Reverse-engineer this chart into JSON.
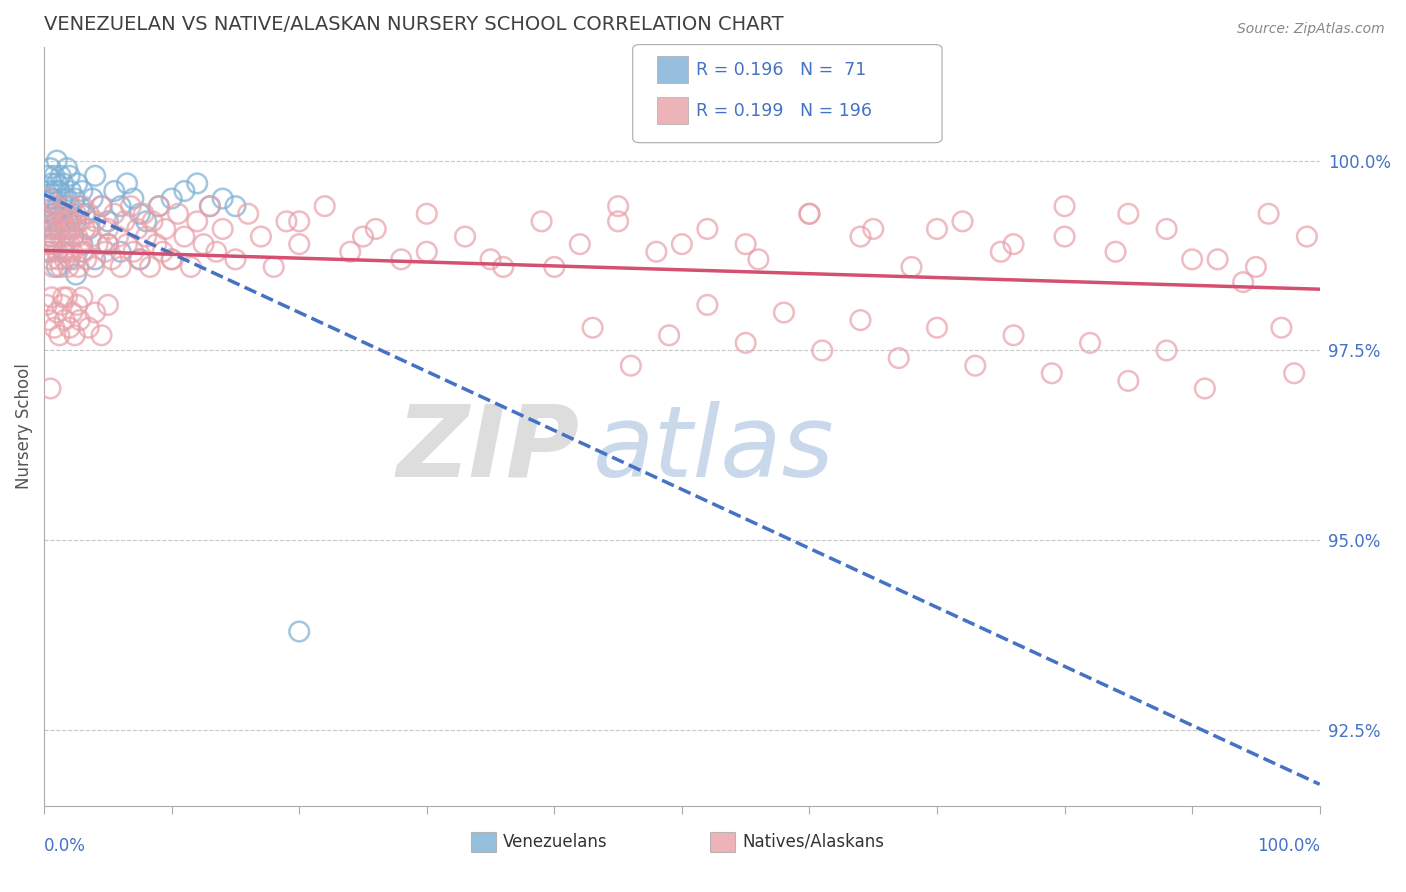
{
  "title": "VENEZUELAN VS NATIVE/ALASKAN NURSERY SCHOOL CORRELATION CHART",
  "source": "Source: ZipAtlas.com",
  "xmin": 0.0,
  "xmax": 100.0,
  "ymin": 91.5,
  "ymax": 101.5,
  "ytick_labels": [
    "92.5%",
    "95.0%",
    "97.5%",
    "100.0%"
  ],
  "ytick_values": [
    92.5,
    95.0,
    97.5,
    100.0
  ],
  "ylabel": "Nursery School",
  "blue_color": "#7bafd4",
  "pink_color": "#e8a0a8",
  "blue_line_color": "#4472c4",
  "pink_line_color": "#d45070",
  "axis_label_color": "#4472c4",
  "title_color": "#404040",
  "grid_color": "#c8c8c8",
  "background_color": "#ffffff",
  "blue_scatter_x": [
    0.2,
    0.3,
    0.3,
    0.4,
    0.5,
    0.5,
    0.5,
    0.6,
    0.6,
    0.7,
    0.7,
    0.8,
    0.8,
    0.9,
    1.0,
    1.0,
    1.0,
    1.1,
    1.2,
    1.2,
    1.3,
    1.3,
    1.4,
    1.5,
    1.5,
    1.6,
    1.7,
    1.8,
    1.8,
    1.9,
    2.0,
    2.0,
    2.1,
    2.2,
    2.3,
    2.4,
    2.5,
    2.6,
    2.8,
    3.0,
    3.2,
    3.5,
    3.8,
    4.0,
    4.5,
    5.0,
    5.5,
    6.0,
    6.5,
    7.0,
    7.5,
    8.0,
    9.0,
    10.0,
    11.0,
    12.0,
    13.0,
    14.0,
    15.0,
    20.0,
    0.4,
    0.6,
    1.0,
    1.5,
    2.0,
    2.5,
    3.0,
    4.0,
    5.0,
    6.0,
    7.5
  ],
  "blue_scatter_y": [
    99.2,
    99.4,
    99.8,
    99.6,
    99.0,
    99.5,
    99.9,
    99.3,
    99.7,
    99.1,
    99.5,
    99.3,
    99.8,
    99.6,
    99.2,
    99.7,
    100.0,
    99.4,
    99.1,
    99.6,
    99.3,
    99.8,
    99.5,
    99.2,
    99.7,
    99.4,
    99.1,
    99.5,
    99.9,
    99.2,
    99.4,
    99.8,
    99.6,
    99.3,
    99.0,
    99.5,
    99.2,
    99.7,
    99.4,
    99.6,
    99.3,
    99.1,
    99.5,
    99.8,
    99.4,
    99.2,
    99.6,
    99.4,
    99.7,
    99.5,
    99.3,
    99.2,
    99.4,
    99.5,
    99.6,
    99.7,
    99.4,
    99.5,
    99.4,
    93.8,
    98.8,
    98.9,
    98.6,
    98.8,
    98.7,
    98.5,
    98.9,
    98.7,
    98.9,
    98.8,
    98.7
  ],
  "pink_scatter_x": [
    0.1,
    0.2,
    0.3,
    0.3,
    0.4,
    0.5,
    0.5,
    0.6,
    0.7,
    0.7,
    0.8,
    0.9,
    1.0,
    1.0,
    1.1,
    1.2,
    1.3,
    1.3,
    1.4,
    1.5,
    1.5,
    1.6,
    1.7,
    1.8,
    1.9,
    2.0,
    2.0,
    2.1,
    2.2,
    2.3,
    2.4,
    2.5,
    2.6,
    2.7,
    2.8,
    2.9,
    3.0,
    3.1,
    3.2,
    3.3,
    3.5,
    3.7,
    3.9,
    4.0,
    4.2,
    4.5,
    4.8,
    5.0,
    5.3,
    5.5,
    5.8,
    6.0,
    6.3,
    6.5,
    6.8,
    7.0,
    7.3,
    7.5,
    7.8,
    8.0,
    8.3,
    8.5,
    8.8,
    9.0,
    9.3,
    9.5,
    10.0,
    10.5,
    11.0,
    11.5,
    12.0,
    12.5,
    13.0,
    13.5,
    14.0,
    15.0,
    16.0,
    17.0,
    18.0,
    19.0,
    20.0,
    22.0,
    24.0,
    26.0,
    28.0,
    30.0,
    33.0,
    36.0,
    39.0,
    42.0,
    45.0,
    48.0,
    52.0,
    56.0,
    60.0,
    64.0,
    68.0,
    72.0,
    76.0,
    80.0,
    84.0,
    88.0,
    92.0,
    96.0,
    99.0,
    0.2,
    0.4,
    0.6,
    0.8,
    1.0,
    1.2,
    1.4,
    1.6,
    1.8,
    2.0,
    2.2,
    2.4,
    2.6,
    2.8,
    3.0,
    3.5,
    4.0,
    4.5,
    5.0,
    25.0,
    35.0,
    45.0,
    55.0,
    65.0,
    75.0,
    85.0,
    95.0,
    50.0,
    70.0,
    90.0,
    60.0,
    80.0,
    40.0,
    30.0,
    20.0,
    10.0,
    5.0,
    2.0,
    0.5,
    1.5,
    3.0,
    98.0,
    97.0,
    94.0,
    91.0,
    88.0,
    85.0,
    82.0,
    79.0,
    76.0,
    73.0,
    70.0,
    67.0,
    64.0,
    61.0,
    58.0,
    55.0,
    52.0,
    49.0,
    46.0,
    43.0
  ],
  "pink_scatter_y": [
    98.9,
    99.2,
    98.8,
    99.5,
    99.1,
    98.7,
    99.3,
    99.0,
    98.6,
    99.2,
    98.9,
    99.4,
    98.8,
    99.1,
    98.7,
    99.3,
    99.0,
    98.6,
    99.2,
    98.8,
    99.1,
    98.7,
    99.3,
    99.0,
    98.6,
    99.2,
    98.9,
    99.4,
    98.8,
    99.1,
    98.7,
    99.3,
    99.0,
    98.6,
    99.2,
    98.9,
    99.4,
    98.8,
    99.1,
    98.7,
    99.3,
    99.0,
    98.6,
    99.2,
    98.9,
    99.4,
    98.8,
    99.1,
    98.7,
    99.3,
    99.0,
    98.6,
    99.2,
    98.9,
    99.4,
    98.8,
    99.1,
    98.7,
    99.3,
    99.0,
    98.6,
    99.2,
    98.9,
    99.4,
    98.8,
    99.1,
    98.7,
    99.3,
    99.0,
    98.6,
    99.2,
    98.9,
    99.4,
    98.8,
    99.1,
    98.7,
    99.3,
    99.0,
    98.6,
    99.2,
    98.9,
    99.4,
    98.8,
    99.1,
    98.7,
    99.3,
    99.0,
    98.6,
    99.2,
    98.9,
    99.4,
    98.8,
    99.1,
    98.7,
    99.3,
    99.0,
    98.6,
    99.2,
    98.9,
    99.4,
    98.8,
    99.1,
    98.7,
    99.3,
    99.0,
    98.1,
    97.9,
    98.2,
    97.8,
    98.0,
    97.7,
    98.1,
    97.9,
    98.2,
    97.8,
    98.0,
    97.7,
    98.1,
    97.9,
    98.2,
    97.8,
    98.0,
    97.7,
    98.1,
    99.0,
    98.7,
    99.2,
    98.9,
    99.1,
    98.8,
    99.3,
    98.6,
    98.9,
    99.1,
    98.7,
    99.3,
    99.0,
    98.6,
    98.8,
    99.2,
    98.7,
    98.9,
    99.1,
    97.0,
    98.2,
    98.8,
    97.2,
    97.8,
    98.4,
    97.0,
    97.5,
    97.1,
    97.6,
    97.2,
    97.7,
    97.3,
    97.8,
    97.4,
    97.9,
    97.5,
    98.0,
    97.6,
    98.1,
    97.7,
    97.3,
    97.8
  ]
}
